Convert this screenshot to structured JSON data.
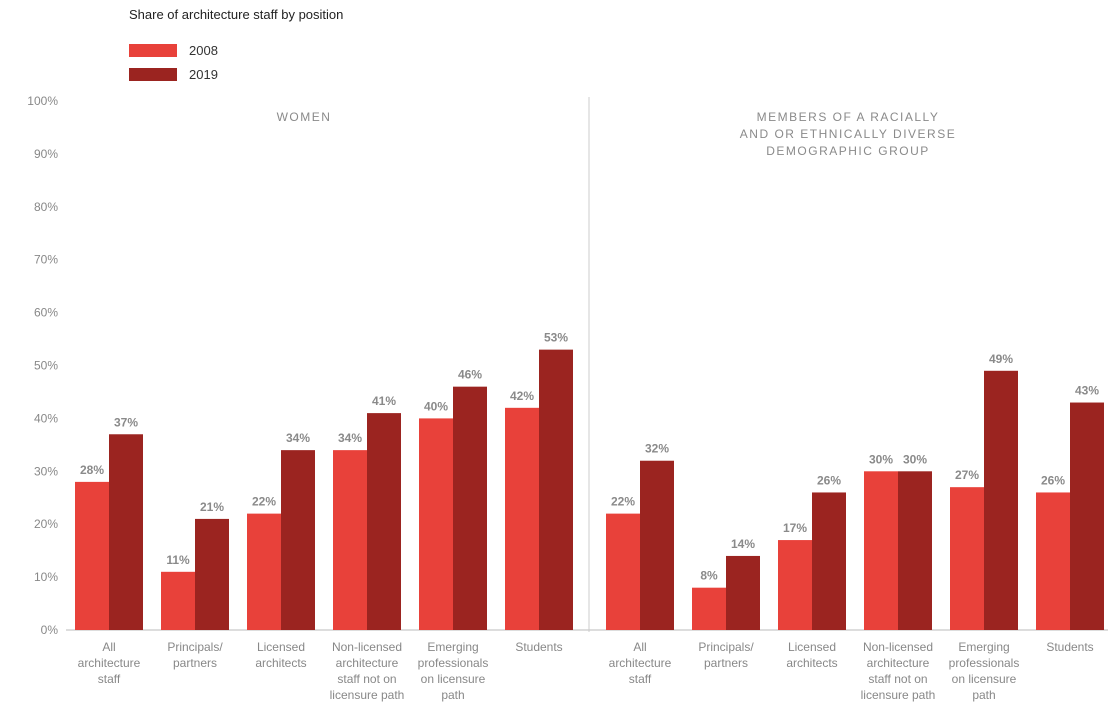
{
  "chart_title": "Share of architecture staff by position",
  "legend": [
    {
      "label": "2008",
      "color": "#e8413a"
    },
    {
      "label": "2019",
      "color": "#9b2420"
    }
  ],
  "colors": {
    "series_2008": "#e8413a",
    "series_2019": "#9b2420",
    "axis_text": "#888888",
    "value_label": "#8a8a8a",
    "divider": "#cccccc"
  },
  "y_axis": {
    "ticks": [
      "0%",
      "10%",
      "20%",
      "30%",
      "40%",
      "50%",
      "60%",
      "70%",
      "80%",
      "90%",
      "100%"
    ]
  },
  "chart_data": [
    {
      "type": "bar",
      "title": "WOMEN",
      "ylim": [
        0,
        100
      ],
      "grid": false,
      "categories": [
        [
          "All",
          "architecture",
          "staff"
        ],
        [
          "Principals/",
          "partners"
        ],
        [
          "Licensed",
          "architects"
        ],
        [
          "Non-licensed",
          "architecture",
          "staff not on",
          "licensure path"
        ],
        [
          "Emerging",
          "professionals",
          "on licensure",
          "path"
        ],
        [
          "Students"
        ]
      ],
      "series": [
        {
          "name": "2008",
          "values": [
            28,
            11,
            22,
            34,
            40,
            42
          ],
          "labels": [
            "28%",
            "11%",
            "22%",
            "34%",
            "40%",
            "42%"
          ]
        },
        {
          "name": "2019",
          "values": [
            37,
            21,
            34,
            41,
            46,
            53
          ],
          "labels": [
            "37%",
            "21%",
            "34%",
            "41%",
            "46%",
            "53%"
          ]
        }
      ]
    },
    {
      "type": "bar",
      "title": [
        "MEMBERS OF A RACIALLY",
        "AND OR ETHNICALLY DIVERSE",
        "DEMOGRAPHIC GROUP"
      ],
      "ylim": [
        0,
        100
      ],
      "grid": false,
      "categories": [
        [
          "All",
          "architecture",
          "staff"
        ],
        [
          "Principals/",
          "partners"
        ],
        [
          "Licensed",
          "architects"
        ],
        [
          "Non-licensed",
          "architecture",
          "staff not on",
          "licensure path"
        ],
        [
          "Emerging",
          "professionals",
          "on licensure",
          "path"
        ],
        [
          "Students"
        ]
      ],
      "series": [
        {
          "name": "2008",
          "values": [
            22,
            8,
            17,
            30,
            27,
            26
          ],
          "labels": [
            "22%",
            "8%",
            "17%",
            "30%",
            "27%",
            "26%"
          ]
        },
        {
          "name": "2019",
          "values": [
            32,
            14,
            26,
            30,
            49,
            43
          ],
          "labels": [
            "32%",
            "14%",
            "26%",
            "30%",
            "49%",
            "43%"
          ]
        }
      ]
    }
  ]
}
